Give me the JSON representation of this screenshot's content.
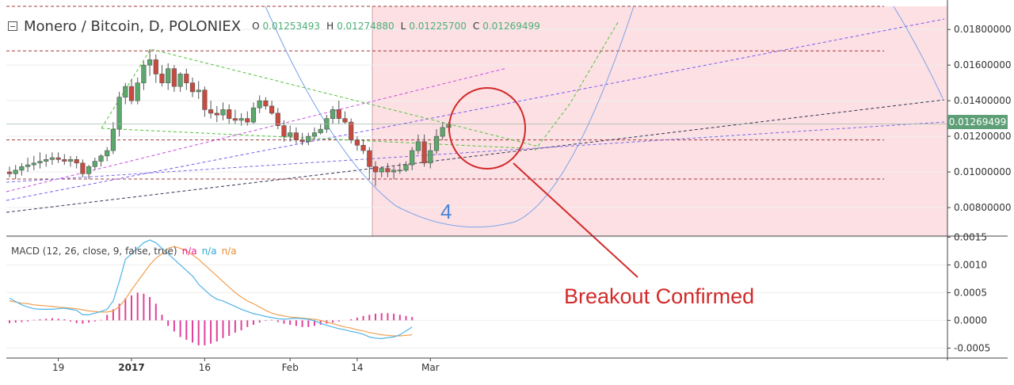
{
  "header": {
    "title": "Monero / Bitcoin, D, POLONIEX",
    "ohlc": [
      {
        "key": "O",
        "value": "0.01253493"
      },
      {
        "key": "H",
        "value": "0.01274880"
      },
      {
        "key": "L",
        "value": "0.01225700"
      },
      {
        "key": "C",
        "value": "0.01269499"
      }
    ]
  },
  "macd_legend": {
    "label": "MACD (12, 26, close, 9, false, true)",
    "values": [
      "n/a",
      "n/a",
      "n/a"
    ]
  },
  "annotations": {
    "breakout_text": "Breakout Confirmed",
    "wave_label": "4"
  },
  "last_price_badge": "0.01269499",
  "colors": {
    "up_candle": "#5aa86b",
    "down_candle": "#c94a3f",
    "highlight_zone": "#fde0e4",
    "horizontal_level": "#a33a3a",
    "macd_line": "#4fb3e8",
    "signal_line": "#f0a050",
    "histogram": "#e0409a",
    "annotation": "#d22a2a"
  },
  "chart_data": [
    {
      "type": "candlestick",
      "title": "Monero / Bitcoin, D, POLONIEX",
      "xlabel": "",
      "ylabel": "",
      "x_tick_labels": [
        "19",
        "2017",
        "16",
        "Feb",
        "14",
        "Mar"
      ],
      "y_tick_labels": [
        "0.01800000",
        "0.01600000",
        "0.01400000",
        "0.01200000",
        "0.01000000",
        "0.00800000"
      ],
      "ylim": [
        0.0064,
        0.0193
      ],
      "horizontal_levels": [
        0.0193,
        0.0168,
        0.0118,
        0.0096
      ],
      "last_close": 0.01269499,
      "series": [
        {
          "open": [
            0.01,
            0.0099,
            0.0101,
            0.0103,
            0.0104,
            0.0105,
            0.0106,
            0.0107,
            0.0108,
            0.0107,
            0.0106,
            0.0107,
            0.0105,
            0.0099,
            0.0103,
            0.0106,
            0.0109,
            0.0112,
            0.0124,
            0.0142,
            0.0148,
            0.014,
            0.015,
            0.016,
            0.0163,
            0.0155,
            0.015,
            0.0158,
            0.0148,
            0.0155,
            0.015,
            0.0145,
            0.0146,
            0.0135,
            0.0133,
            0.0132,
            0.0135,
            0.013,
            0.0129,
            0.013,
            0.0128,
            0.0136,
            0.014,
            0.0137,
            0.0133,
            0.0126,
            0.012,
            0.0122,
            0.0118,
            0.0117,
            0.012,
            0.0122,
            0.0124,
            0.013,
            0.0135,
            0.013,
            0.0128,
            0.0118,
            0.0115,
            0.0112,
            0.0103,
            0.01,
            0.0102,
            0.01,
            0.0101,
            0.0101,
            0.0104,
            0.0112,
            0.0117,
            0.0105,
            0.0112,
            0.012,
            0.0125
          ],
          "high": [
            0.0103,
            0.0104,
            0.0105,
            0.0108,
            0.0109,
            0.0111,
            0.011,
            0.0111,
            0.0111,
            0.011,
            0.0109,
            0.0109,
            0.0107,
            0.0104,
            0.0108,
            0.011,
            0.0114,
            0.0128,
            0.0145,
            0.015,
            0.0152,
            0.0153,
            0.0162,
            0.0169,
            0.0166,
            0.016,
            0.0161,
            0.016,
            0.0156,
            0.0158,
            0.0153,
            0.0151,
            0.0148,
            0.014,
            0.0137,
            0.0139,
            0.0138,
            0.0135,
            0.0133,
            0.0134,
            0.0139,
            0.0143,
            0.0142,
            0.014,
            0.0136,
            0.0129,
            0.0126,
            0.0125,
            0.0122,
            0.0122,
            0.0125,
            0.0127,
            0.0132,
            0.0137,
            0.014,
            0.0134,
            0.013,
            0.012,
            0.0118,
            0.0114,
            0.0106,
            0.0103,
            0.0105,
            0.0103,
            0.0105,
            0.0106,
            0.0114,
            0.0121,
            0.0121,
            0.0116,
            0.0124,
            0.0128,
            0.0128
          ],
          "low": [
            0.0097,
            0.0096,
            0.0098,
            0.01,
            0.0101,
            0.0102,
            0.0103,
            0.0104,
            0.0105,
            0.0104,
            0.0103,
            0.0102,
            0.0097,
            0.0096,
            0.0101,
            0.0103,
            0.0106,
            0.011,
            0.012,
            0.0138,
            0.0138,
            0.0138,
            0.0146,
            0.0154,
            0.015,
            0.0148,
            0.0146,
            0.0145,
            0.0145,
            0.0146,
            0.0142,
            0.0141,
            0.0131,
            0.013,
            0.0128,
            0.0129,
            0.0127,
            0.0127,
            0.0126,
            0.0126,
            0.0127,
            0.0133,
            0.0135,
            0.0132,
            0.0124,
            0.0117,
            0.0117,
            0.0116,
            0.0115,
            0.0115,
            0.0118,
            0.0121,
            0.0122,
            0.0127,
            0.0127,
            0.0127,
            0.0116,
            0.0112,
            0.011,
            0.0096,
            0.0092,
            0.0097,
            0.0097,
            0.0096,
            0.0099,
            0.01,
            0.0101,
            0.011,
            0.0103,
            0.0102,
            0.011,
            0.0118,
            0.0123
          ],
          "close": [
            0.0099,
            0.0101,
            0.0103,
            0.0104,
            0.0105,
            0.0106,
            0.0107,
            0.0108,
            0.0107,
            0.0106,
            0.0107,
            0.0105,
            0.0099,
            0.0103,
            0.0106,
            0.0109,
            0.0112,
            0.0124,
            0.0142,
            0.0148,
            0.014,
            0.015,
            0.016,
            0.0163,
            0.0155,
            0.015,
            0.0158,
            0.0148,
            0.0155,
            0.015,
            0.0145,
            0.0146,
            0.0135,
            0.0133,
            0.0132,
            0.0135,
            0.013,
            0.0129,
            0.013,
            0.0128,
            0.0136,
            0.014,
            0.0137,
            0.0133,
            0.0126,
            0.012,
            0.0122,
            0.0118,
            0.0117,
            0.012,
            0.0122,
            0.0124,
            0.013,
            0.0135,
            0.013,
            0.0128,
            0.0118,
            0.0115,
            0.0112,
            0.0103,
            0.01,
            0.0102,
            0.01,
            0.0101,
            0.0101,
            0.0104,
            0.0112,
            0.0117,
            0.0105,
            0.0112,
            0.012,
            0.0125,
            0.0127
          ]
        }
      ]
    },
    {
      "type": "line",
      "title": "MACD (12, 26, close, 9, false, true)",
      "y_tick_labels": [
        "0.0015",
        "0.0010",
        "0.0005",
        "0.0000",
        "-0.0005"
      ],
      "ylim": [
        -0.00068,
        0.00152
      ],
      "series": [
        {
          "name": "MACD",
          "values": [
            0.0004,
            0.00034,
            0.00028,
            0.00024,
            0.00021,
            0.0002,
            0.0002,
            0.0002,
            0.00021,
            0.00022,
            0.0002,
            0.00018,
            0.0001,
            0.0001,
            0.00013,
            0.00016,
            0.0002,
            0.00035,
            0.0007,
            0.0011,
            0.0012,
            0.0013,
            0.0014,
            0.00145,
            0.0014,
            0.0013,
            0.0012,
            0.0011,
            0.001,
            0.0009,
            0.0008,
            0.00065,
            0.00055,
            0.00045,
            0.00038,
            0.00035,
            0.0003,
            0.00025,
            0.0002,
            0.00016,
            0.00012,
            0.0001,
            7e-05,
            5e-05,
            3e-05,
            2e-05,
            3e-05,
            4e-05,
            3e-05,
            2e-05,
            -1e-05,
            -5e-05,
            -9e-05,
            -0.00012,
            -0.00015,
            -0.00017,
            -0.0002,
            -0.00022,
            -0.00025,
            -0.0003,
            -0.00032,
            -0.00033,
            -0.00031,
            -0.0003,
            -0.00026,
            -0.00019,
            -0.00012
          ]
        },
        {
          "name": "Signal",
          "values": [
            0.00035,
            0.00033,
            0.00031,
            0.0003,
            0.00028,
            0.00027,
            0.00026,
            0.00025,
            0.00024,
            0.00023,
            0.00022,
            0.00021,
            0.00019,
            0.00017,
            0.00016,
            0.00015,
            0.00015,
            0.00017,
            0.00025,
            0.00038,
            0.00055,
            0.0007,
            0.00085,
            0.001,
            0.00112,
            0.0012,
            0.0013,
            0.00133,
            0.0013,
            0.00125,
            0.00118,
            0.0011,
            0.001,
            0.0009,
            0.0008,
            0.0007,
            0.0006,
            0.0005,
            0.00042,
            0.00035,
            0.0003,
            0.00024,
            0.00018,
            0.00013,
            0.0001,
            8e-05,
            6e-05,
            5e-05,
            4e-05,
            3e-05,
            2e-05,
            0.0,
            -3e-05,
            -6e-05,
            -9e-05,
            -0.00012,
            -0.00014,
            -0.00017,
            -0.00019,
            -0.00022,
            -0.00024,
            -0.00026,
            -0.00027,
            -0.00028,
            -0.00028,
            -0.00027,
            -0.00026
          ]
        },
        {
          "name": "Histogram",
          "values": [
            -5e-05,
            -4e-05,
            -3e-05,
            -2e-05,
            1e-05,
            2e-05,
            3e-05,
            4e-05,
            3e-05,
            2e-05,
            -2e-05,
            -5e-05,
            -6e-05,
            -4e-05,
            -2e-05,
            1e-05,
            0.0001,
            0.0002,
            0.0003,
            0.0004,
            0.00045,
            0.0005,
            0.00048,
            0.00042,
            0.0003,
            0.0001,
            -0.0001,
            -0.0002,
            -0.0003,
            -0.00035,
            -0.0004,
            -0.00045,
            -0.00045,
            -0.00042,
            -0.00038,
            -0.00032,
            -0.00028,
            -0.00022,
            -0.00018,
            -0.00012,
            -8e-05,
            -4e-05,
            -1e-05,
            1e-05,
            -3e-05,
            -6e-05,
            -8e-05,
            -0.0001,
            -0.00012,
            -0.00012,
            -0.0001,
            -8e-05,
            -6e-05,
            -4e-05,
            -2e-05,
            0.0,
            2e-05,
            5e-05,
            8e-05,
            0.0001,
            0.00012,
            0.00013,
            0.00013,
            0.00012,
            0.0001,
            8e-05,
            6e-05
          ]
        }
      ]
    }
  ]
}
